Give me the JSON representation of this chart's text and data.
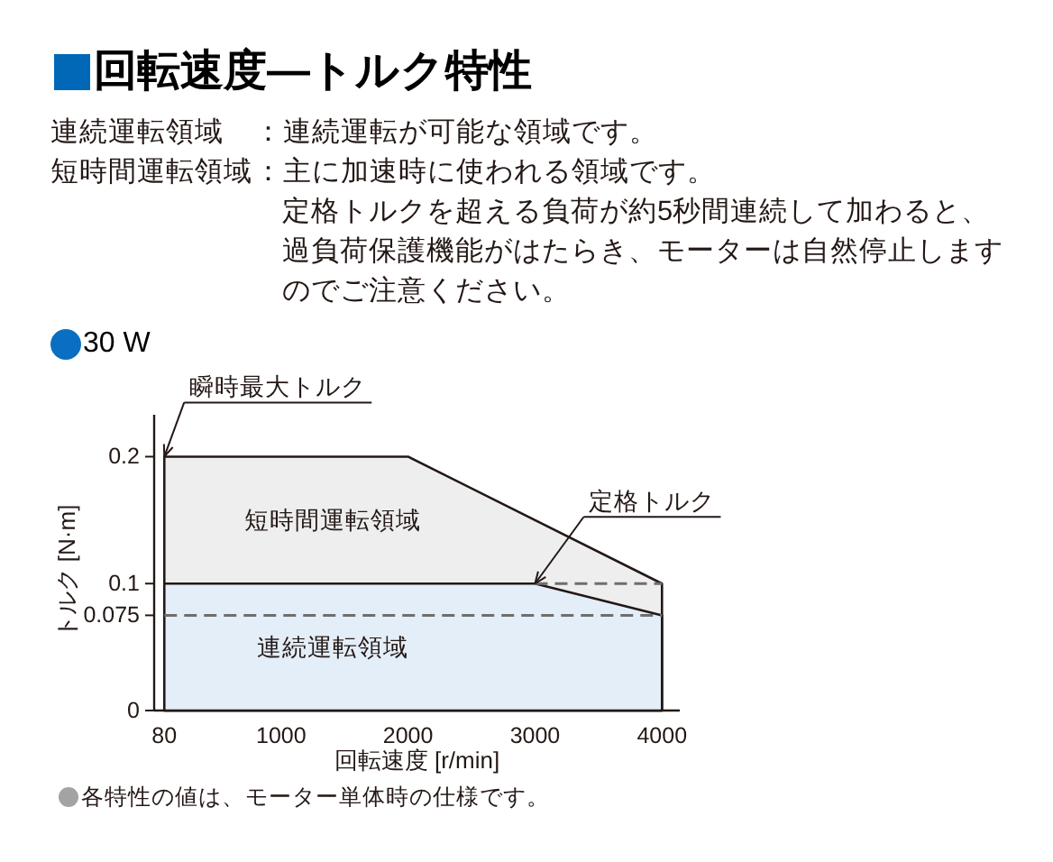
{
  "chart_data": {
    "type": "area",
    "title": "回転速度—トルク特性",
    "subtitle": "30 W",
    "xlabel": "回転速度 [r/min]",
    "ylabel": "トルク [N·m]",
    "series": [
      {
        "name": "短時間運転領域",
        "color": "#eeeeee",
        "x": [
          80,
          2000,
          4000
        ],
        "values": [
          0.2,
          0.2,
          0.1
        ]
      },
      {
        "name": "連続運転領域",
        "color": "#e4eef8",
        "x": [
          80,
          3000,
          4000
        ],
        "values": [
          0.1,
          0.1,
          0.075
        ]
      },
      {
        "type": "line",
        "color": "#6e6e6e",
        "x": [
          3000,
          4000
        ],
        "values": [
          0.1,
          0.1
        ],
        "line_style": "dashed"
      },
      {
        "type": "line",
        "color": "#6e6e6e",
        "x": [
          80,
          4000
        ],
        "values": [
          0.075,
          0.075
        ],
        "line_style": "dashed"
      }
    ],
    "xlim": [
      0,
      4140
    ],
    "ylim": [
      0,
      0.233
    ],
    "xticks": [
      80,
      1000,
      2000,
      3000,
      4000
    ],
    "yticks": [
      0,
      0.075,
      0.1,
      0.2
    ],
    "annotations": [
      {
        "text": "瞬時最大トルク",
        "x": 80,
        "y": 0.2
      },
      {
        "text": "定格トルク",
        "x": 3000,
        "y": 0.1
      },
      "連続運転領域",
      "：連続運転が可能な領域です。",
      "短時間運転領域",
      "：主に加速時に使われる領域です。",
      "定格トルクを超える負荷が約5秒間連続して加わると、過負荷保護機能がはたらき、モーターは自然停止しますのでご注意ください。",
      "各特性の値は、モーター単体時の仕様です。"
    ]
  }
}
